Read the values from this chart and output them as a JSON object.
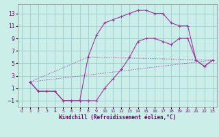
{
  "xlabel": "Windchill (Refroidissement éolien,°C)",
  "xlim": [
    -0.5,
    23.5
  ],
  "ylim": [
    -2,
    14.5
  ],
  "xticks": [
    0,
    1,
    2,
    3,
    4,
    5,
    6,
    7,
    8,
    9,
    10,
    11,
    12,
    13,
    14,
    15,
    16,
    17,
    18,
    19,
    20,
    21,
    22,
    23
  ],
  "yticks": [
    -1,
    1,
    3,
    5,
    7,
    9,
    11,
    13
  ],
  "bg_color": "#cceee8",
  "line_color": "#993399",
  "grid_color": "#99cccc",
  "curve1_x": [
    1,
    2,
    3,
    4,
    5,
    6,
    7,
    8,
    9,
    10,
    11,
    12,
    13,
    14,
    15,
    16,
    17,
    18,
    19,
    20,
    21,
    22,
    23
  ],
  "curve1_y": [
    2,
    0.5,
    0.5,
    0.5,
    -1.0,
    -1.0,
    -1.0,
    -1.0,
    -1.0,
    1.0,
    2.5,
    4.0,
    6.0,
    8.5,
    9.0,
    9.0,
    8.5,
    8.0,
    9.0,
    9.0,
    5.5,
    4.5,
    5.5
  ],
  "curve2_x": [
    1,
    2,
    3,
    4,
    5,
    6,
    7,
    8,
    9,
    10,
    11,
    12,
    13,
    14,
    15,
    16,
    17,
    18,
    19,
    20,
    21,
    22,
    23
  ],
  "curve2_y": [
    2,
    0.5,
    0.5,
    0.5,
    -1.0,
    -1.0,
    -1.0,
    6.0,
    9.5,
    11.5,
    12.0,
    12.5,
    13.0,
    13.5,
    13.5,
    13.0,
    13.0,
    11.5,
    11.0,
    11.0,
    5.5,
    4.5,
    5.5
  ],
  "line3_x": [
    1,
    23
  ],
  "line3_y": [
    2,
    5.5
  ],
  "line4_x": [
    1,
    8,
    23
  ],
  "line4_y": [
    2,
    6.0,
    5.5
  ]
}
